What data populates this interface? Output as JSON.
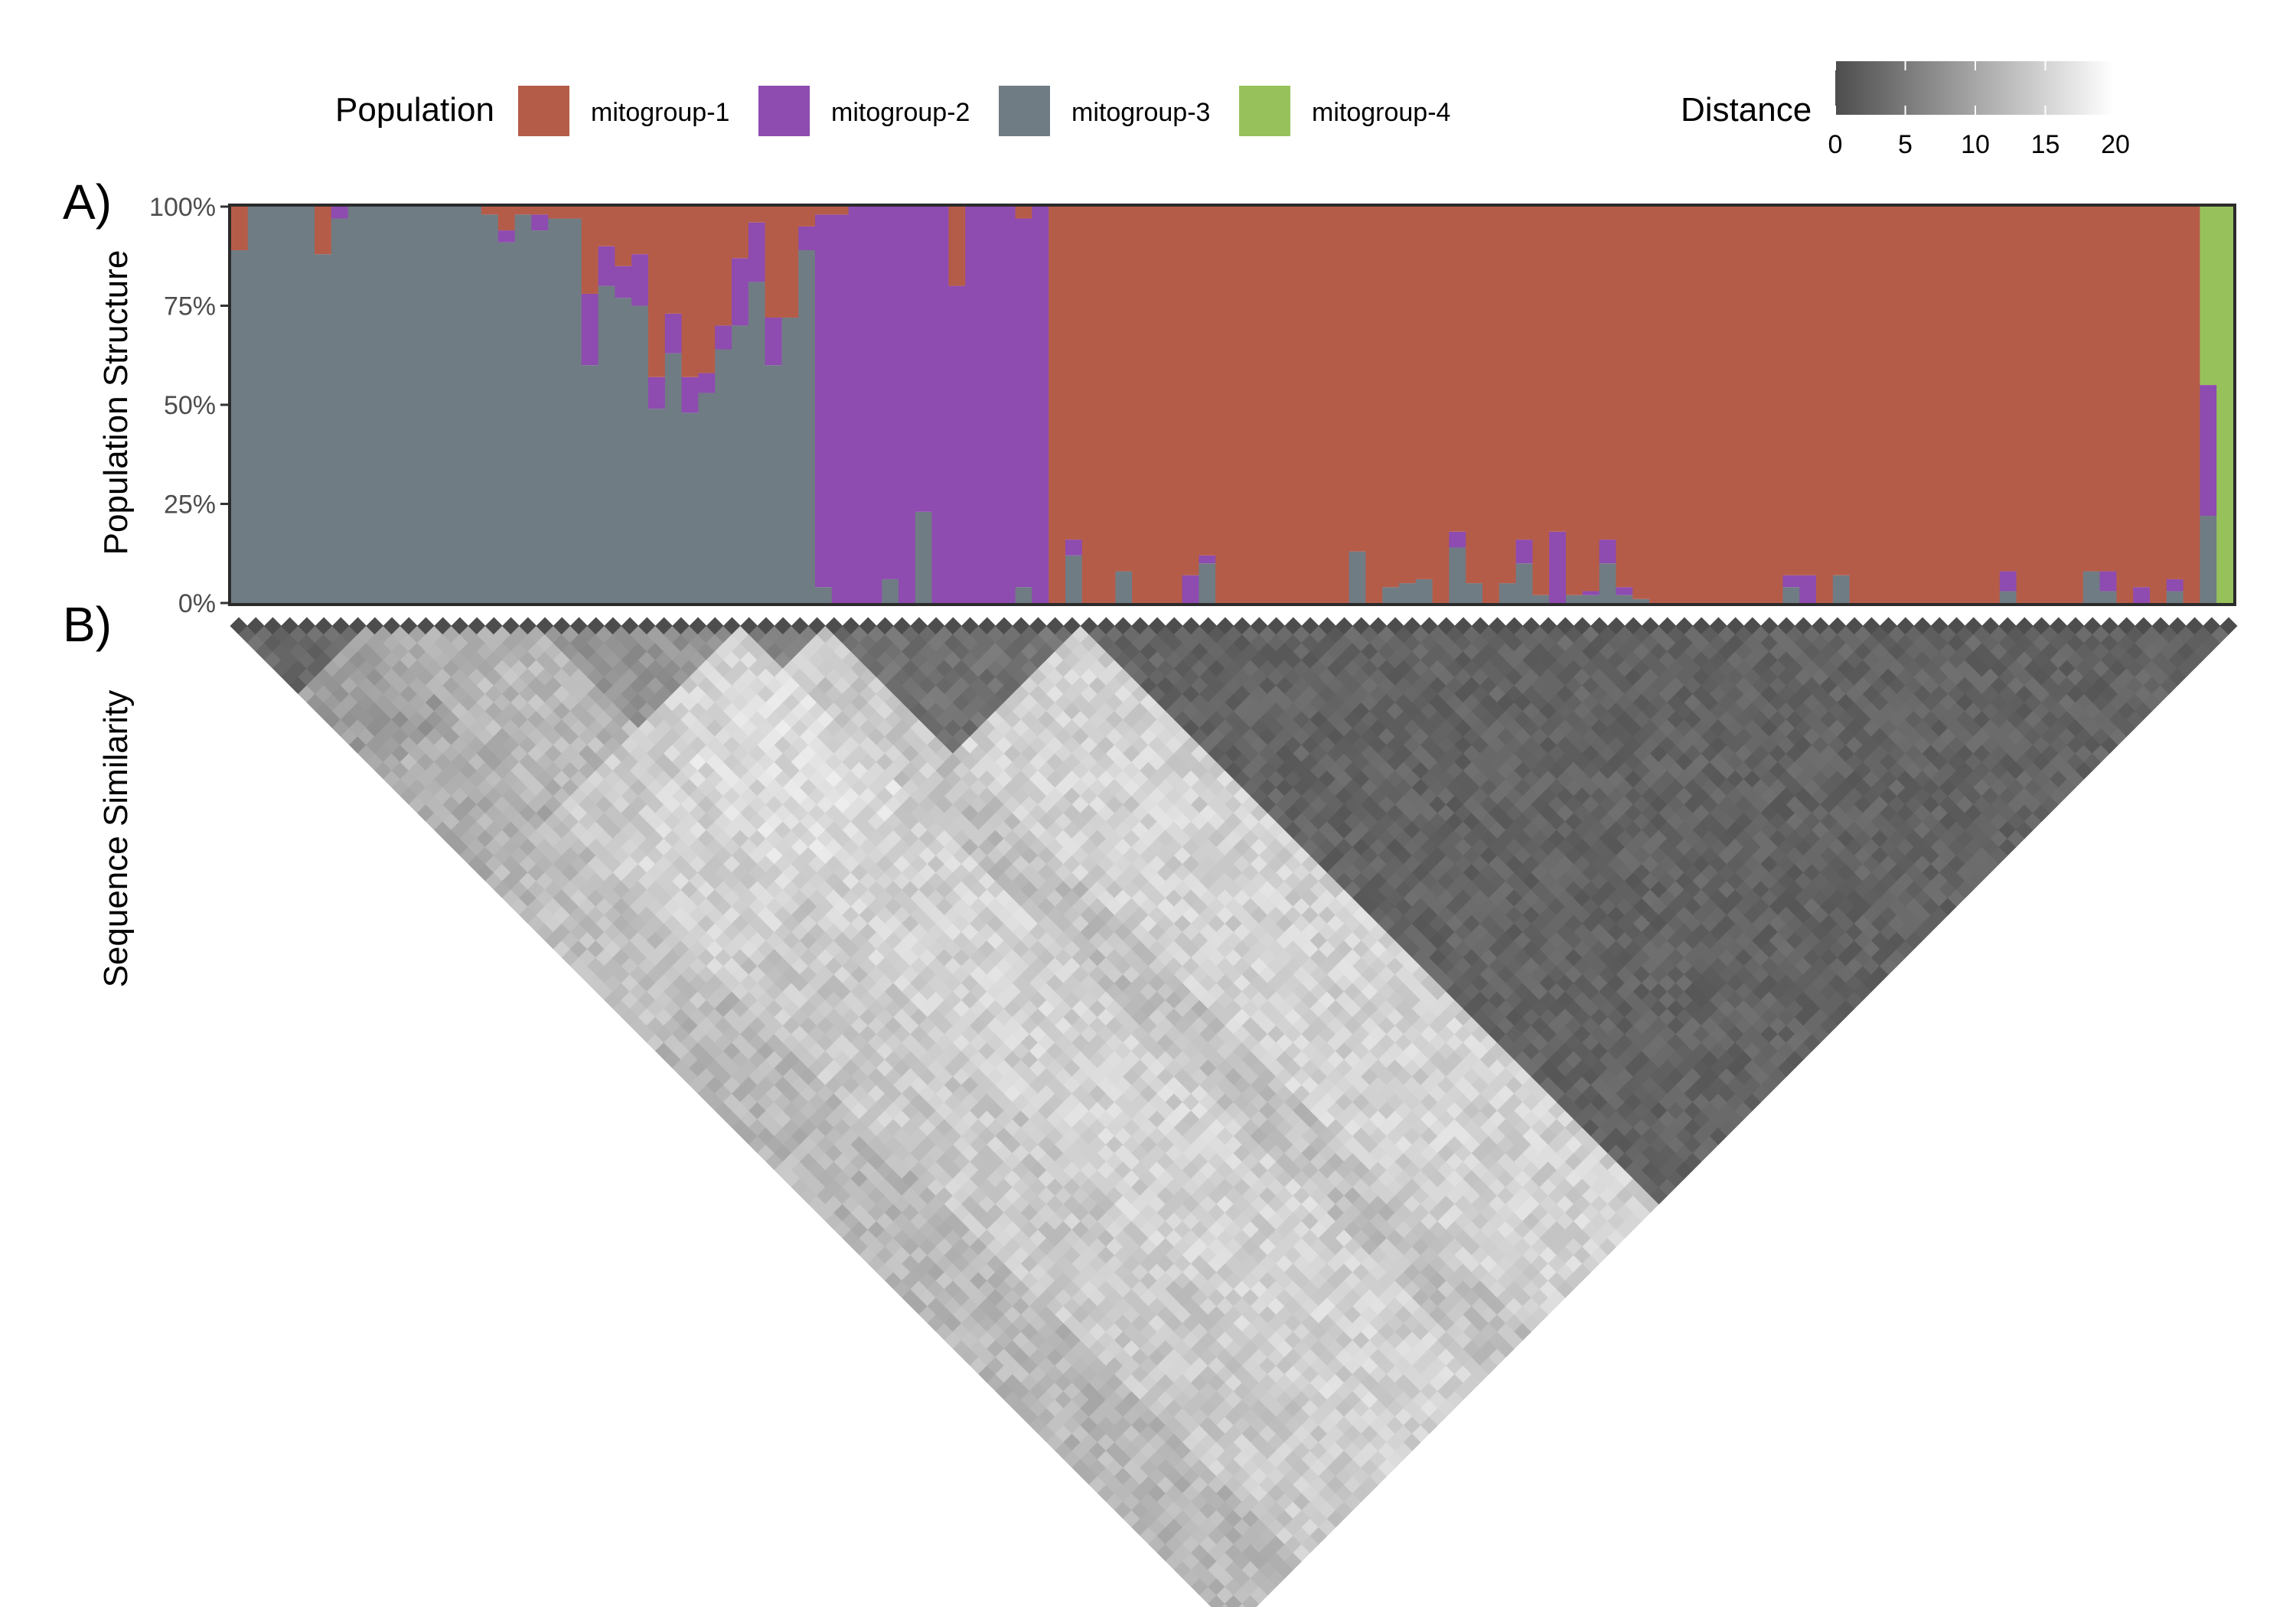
{
  "chart_data": [
    {
      "type": "bar",
      "panel_label": "A)",
      "ylabel": "Population Structure",
      "y_ticks": [
        "0%",
        "25%",
        "50%",
        "75%",
        "100%"
      ],
      "ylim": [
        0,
        1
      ],
      "stacked": true,
      "legend_title": "Population",
      "legend_position": "top",
      "series": [
        {
          "name": "mitogroup-1",
          "color": "#b55c49"
        },
        {
          "name": "mitogroup-2",
          "color": "#8e4bb0"
        },
        {
          "name": "mitogroup-3",
          "color": "#707c84"
        },
        {
          "name": "mitogroup-4",
          "color": "#97c15b"
        }
      ],
      "stack_order_bottom_to_top": [
        "mitogroup-3",
        "mitogroup-2",
        "mitogroup-1",
        "mitogroup-4"
      ],
      "n_samples": 118,
      "samples_mitogroup3_mitogroup2_mitogroup1_mitogroup4": [
        [
          0.89,
          0,
          0.11,
          0
        ],
        [
          1,
          0,
          0,
          0
        ],
        [
          1,
          0,
          0,
          0
        ],
        [
          1,
          0,
          0,
          0
        ],
        [
          1,
          0,
          0,
          0
        ],
        [
          0.88,
          0,
          0.12,
          0
        ],
        [
          0.97,
          0.03,
          0,
          0
        ],
        [
          1,
          0,
          0,
          0
        ],
        [
          1,
          0,
          0,
          0
        ],
        [
          1,
          0,
          0,
          0
        ],
        [
          1,
          0,
          0,
          0
        ],
        [
          1,
          0,
          0,
          0
        ],
        [
          1,
          0,
          0,
          0
        ],
        [
          1,
          0,
          0,
          0
        ],
        [
          1,
          0,
          0,
          0
        ],
        [
          0.98,
          0,
          0.02,
          0
        ],
        [
          0.91,
          0.03,
          0.06,
          0
        ],
        [
          0.98,
          0,
          0.02,
          0
        ],
        [
          0.94,
          0.04,
          0.02,
          0
        ],
        [
          0.97,
          0,
          0.03,
          0
        ],
        [
          0.97,
          0,
          0.03,
          0
        ],
        [
          0.6,
          0.18,
          0.22,
          0
        ],
        [
          0.8,
          0.1,
          0.1,
          0
        ],
        [
          0.77,
          0.08,
          0.15,
          0
        ],
        [
          0.75,
          0.13,
          0.12,
          0
        ],
        [
          0.49,
          0.08,
          0.43,
          0
        ],
        [
          0.63,
          0.1,
          0.27,
          0
        ],
        [
          0.48,
          0.09,
          0.43,
          0
        ],
        [
          0.53,
          0.05,
          0.42,
          0
        ],
        [
          0.64,
          0.06,
          0.3,
          0
        ],
        [
          0.7,
          0.17,
          0.13,
          0
        ],
        [
          0.81,
          0.15,
          0.04,
          0
        ],
        [
          0.6,
          0.12,
          0.28,
          0
        ],
        [
          0.72,
          0,
          0.28,
          0
        ],
        [
          0.89,
          0.06,
          0.05,
          0
        ],
        [
          0.04,
          0.94,
          0.02,
          0
        ],
        [
          0,
          0.98,
          0.02,
          0
        ],
        [
          0,
          1,
          0,
          0
        ],
        [
          0,
          1,
          0,
          0
        ],
        [
          0.06,
          0.94,
          0,
          0
        ],
        [
          0,
          1,
          0,
          0
        ],
        [
          0.23,
          0.77,
          0,
          0
        ],
        [
          0,
          1,
          0,
          0
        ],
        [
          0,
          0.8,
          0.2,
          0
        ],
        [
          0,
          1,
          0,
          0
        ],
        [
          0,
          1,
          0,
          0
        ],
        [
          0,
          1,
          0,
          0
        ],
        [
          0.04,
          0.93,
          0.03,
          0
        ],
        [
          0,
          1,
          0,
          0
        ],
        [
          0,
          0,
          1,
          0
        ],
        [
          0.12,
          0.04,
          0.84,
          0
        ],
        [
          0,
          0,
          1,
          0
        ],
        [
          0,
          0,
          1,
          0
        ],
        [
          0.08,
          0,
          0.92,
          0
        ],
        [
          0,
          0,
          1,
          0
        ],
        [
          0,
          0,
          1,
          0
        ],
        [
          0,
          0,
          1,
          0
        ],
        [
          0,
          0.07,
          0.93,
          0
        ],
        [
          0.1,
          0.02,
          0.88,
          0
        ],
        [
          0,
          0,
          1,
          0
        ],
        [
          0,
          0,
          1,
          0
        ],
        [
          0,
          0,
          1,
          0
        ],
        [
          0,
          0,
          1,
          0
        ],
        [
          0,
          0,
          1,
          0
        ],
        [
          0,
          0,
          1,
          0
        ],
        [
          0,
          0,
          1,
          0
        ],
        [
          0,
          0,
          1,
          0
        ],
        [
          0.13,
          0,
          0.87,
          0
        ],
        [
          0,
          0,
          1,
          0
        ],
        [
          0.04,
          0,
          0.96,
          0
        ],
        [
          0.05,
          0,
          0.95,
          0
        ],
        [
          0.06,
          0,
          0.94,
          0
        ],
        [
          0,
          0,
          1,
          0
        ],
        [
          0.14,
          0.04,
          0.82,
          0
        ],
        [
          0.05,
          0,
          0.95,
          0
        ],
        [
          0,
          0,
          1,
          0
        ],
        [
          0.05,
          0,
          0.95,
          0
        ],
        [
          0.1,
          0.06,
          0.84,
          0
        ],
        [
          0.02,
          0,
          0.98,
          0
        ],
        [
          0,
          0.18,
          0.82,
          0
        ],
        [
          0.02,
          0,
          0.98,
          0
        ],
        [
          0.02,
          0.01,
          0.97,
          0
        ],
        [
          0.1,
          0.06,
          0.84,
          0
        ],
        [
          0.02,
          0.02,
          0.96,
          0
        ],
        [
          0.01,
          0,
          0.99,
          0
        ],
        [
          0,
          0,
          1,
          0
        ],
        [
          0,
          0,
          1,
          0
        ],
        [
          0,
          0,
          1,
          0
        ],
        [
          0,
          0,
          1,
          0
        ],
        [
          0,
          0,
          1,
          0
        ],
        [
          0,
          0,
          1,
          0
        ],
        [
          0,
          0,
          1,
          0
        ],
        [
          0,
          0,
          1,
          0
        ],
        [
          0.04,
          0.03,
          0.93,
          0
        ],
        [
          0,
          0.07,
          0.93,
          0
        ],
        [
          0,
          0,
          1,
          0
        ],
        [
          0.07,
          0,
          0.93,
          0
        ],
        [
          0,
          0,
          1,
          0
        ],
        [
          0,
          0,
          1,
          0
        ],
        [
          0,
          0,
          1,
          0
        ],
        [
          0,
          0,
          1,
          0
        ],
        [
          0,
          0,
          1,
          0
        ],
        [
          0,
          0,
          1,
          0
        ],
        [
          0,
          0,
          1,
          0
        ],
        [
          0,
          0,
          1,
          0
        ],
        [
          0,
          0,
          1,
          0
        ],
        [
          0.03,
          0.05,
          0.92,
          0
        ],
        [
          0,
          0,
          1,
          0
        ],
        [
          0,
          0,
          1,
          0
        ],
        [
          0,
          0,
          1,
          0
        ],
        [
          0,
          0,
          1,
          0
        ],
        [
          0.08,
          0,
          0.92,
          0
        ],
        [
          0.03,
          0.05,
          0.92,
          0
        ],
        [
          0,
          0,
          1,
          0
        ],
        [
          0,
          0.04,
          0.96,
          0
        ],
        [
          0,
          0,
          1,
          0
        ],
        [
          0.03,
          0.03,
          0.94,
          0
        ],
        [
          0,
          0,
          1,
          0
        ],
        [
          0.22,
          0.33,
          0,
          0.45
        ],
        [
          0,
          0,
          0,
          1
        ]
      ]
    },
    {
      "type": "heatmap",
      "panel_label": "B)",
      "ylabel": "Sequence Similarity",
      "legend_title": "Distance",
      "color_scale": {
        "low": "#4d4d4d",
        "high": "#ffffff",
        "ticks": [
          "0",
          "5",
          "10",
          "15",
          "20"
        ],
        "range": [
          0,
          20
        ]
      },
      "n_samples": 118,
      "clusters": [
        {
          "start": 0,
          "end": 8,
          "within_distance": 3
        },
        {
          "start": 8,
          "end": 18,
          "within_distance": 11
        },
        {
          "start": 18,
          "end": 30,
          "within_distance": 8
        },
        {
          "start": 30,
          "end": 35,
          "within_distance": 6
        },
        {
          "start": 35,
          "end": 50,
          "within_distance": 4
        },
        {
          "start": 50,
          "end": 118,
          "within_distance": 2.5
        }
      ],
      "between_cluster_distance": [
        [
          0,
          9,
          11,
          12,
          13,
          12
        ],
        [
          9,
          0,
          12,
          14,
          15,
          14
        ],
        [
          11,
          12,
          0,
          15,
          16,
          15
        ],
        [
          12,
          14,
          15,
          0,
          14,
          13
        ],
        [
          13,
          15,
          16,
          14,
          0,
          15
        ],
        [
          12,
          14,
          15,
          13,
          15,
          0
        ]
      ]
    }
  ]
}
